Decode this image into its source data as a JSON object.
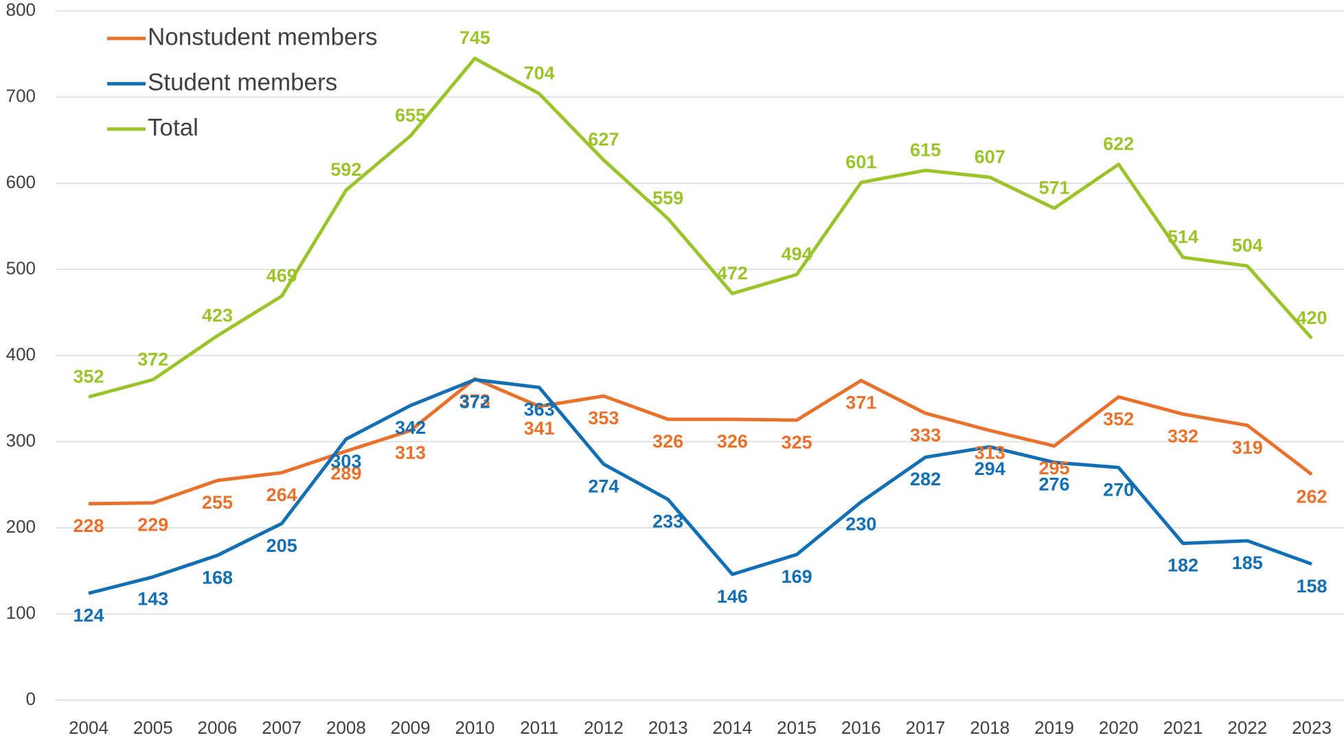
{
  "chart_data": {
    "type": "line",
    "categories": [
      "2004",
      "2005",
      "2006",
      "2007",
      "2008",
      "2009",
      "2010",
      "2011",
      "2012",
      "2013",
      "2014",
      "2015",
      "2016",
      "2017",
      "2018",
      "2019",
      "2020",
      "2021",
      "2022",
      "2023"
    ],
    "series": [
      {
        "name": "Nonstudent members",
        "color": "#e8712c",
        "values": [
          228,
          229,
          255,
          264,
          289,
          313,
          373,
          341,
          353,
          326,
          326,
          325,
          371,
          333,
          313,
          295,
          352,
          332,
          319,
          262
        ]
      },
      {
        "name": "Student members",
        "color": "#136fb4",
        "values": [
          124,
          143,
          168,
          205,
          303,
          342,
          372,
          363,
          274,
          233,
          146,
          169,
          230,
          282,
          294,
          276,
          270,
          182,
          185,
          158
        ]
      },
      {
        "name": "Total",
        "color": "#9bc42b",
        "values": [
          352,
          372,
          423,
          469,
          592,
          655,
          745,
          704,
          627,
          559,
          472,
          494,
          601,
          615,
          607,
          571,
          622,
          514,
          504,
          420
        ]
      }
    ],
    "ylim": [
      0,
      800
    ],
    "yticks": [
      0,
      100,
      200,
      300,
      400,
      500,
      600,
      700,
      800
    ],
    "grid": true,
    "legend": "upper left"
  }
}
